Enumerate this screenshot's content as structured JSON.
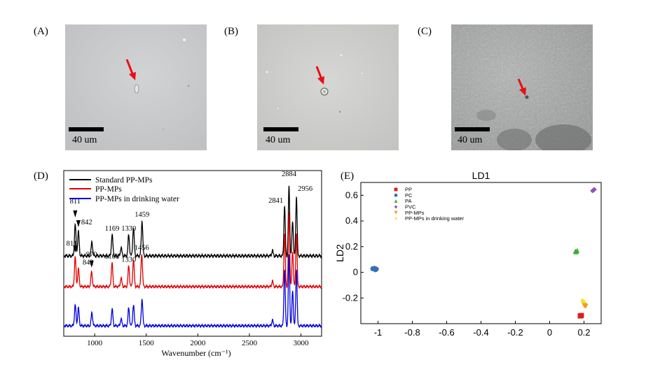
{
  "panels": {
    "A": {
      "label": "(A)",
      "scale_label": "40 um"
    },
    "B": {
      "label": "(B)",
      "scale_label": "40 um"
    },
    "C": {
      "label": "(C)",
      "scale_label": "40 um"
    },
    "D": {
      "label": "(D)"
    },
    "E": {
      "label": "(E)"
    }
  },
  "colors": {
    "standard": "#000000",
    "ppmps": "#e00000",
    "drinking": "#0000e0",
    "arrow": "#e81010"
  },
  "chart_data": [
    {
      "type": "line",
      "panel": "D",
      "xlabel": "Wavenumber (cm⁻¹)",
      "xlim": [
        700,
        3200
      ],
      "x_ticks": [
        1000,
        1500,
        2000,
        2500,
        3000
      ],
      "legend": [
        "Standard PP-MPs",
        "PP-MPs",
        "PP-MPs in drinking water"
      ],
      "series": [
        {
          "name": "Standard PP-MPs",
          "color": "#000000",
          "peaks": [
            [
              811,
              0.45
            ],
            [
              842,
              0.35
            ],
            [
              973,
              0.2
            ],
            [
              1169,
              0.3
            ],
            [
              1256,
              0.12
            ],
            [
              1330,
              0.3
            ],
            [
              1376,
              0.4
            ],
            [
              1459,
              0.5
            ],
            [
              2723,
              0.08
            ],
            [
              2841,
              0.72
            ],
            [
              2884,
              1.0
            ],
            [
              2919,
              0.5
            ],
            [
              2956,
              0.85
            ]
          ],
          "annotations": [
            {
              "x": 811,
              "text": "811",
              "marker": true
            },
            {
              "x": 842,
              "text": "842",
              "marker": true
            },
            {
              "x": 1169,
              "text": "1169"
            },
            {
              "x": 1330,
              "text": "1330"
            },
            {
              "x": 1459,
              "text": "1459"
            },
            {
              "x": 2841,
              "text": "2841"
            },
            {
              "x": 2884,
              "text": "2884"
            },
            {
              "x": 2956,
              "text": "2956"
            }
          ]
        },
        {
          "name": "PP-MPs",
          "color": "#e00000",
          "peaks": [
            [
              811,
              0.5
            ],
            [
              842,
              0.3
            ],
            [
              970,
              0.25
            ],
            [
              1168,
              0.4
            ],
            [
              1256,
              0.15
            ],
            [
              1330,
              0.35
            ],
            [
              1376,
              0.45
            ],
            [
              1456,
              0.55
            ],
            [
              2723,
              0.1
            ],
            [
              2841,
              0.9
            ],
            [
              2884,
              1.25
            ],
            [
              2919,
              0.6
            ],
            [
              2956,
              0.9
            ]
          ],
          "annotations": [
            {
              "x": 811,
              "text": "811",
              "marker": true
            },
            {
              "x": 842,
              "text": "842"
            },
            {
              "x": 970,
              "text": "970",
              "marker": true
            },
            {
              "x": 1168,
              "text": "1168"
            },
            {
              "x": 1330,
              "text": "1330"
            },
            {
              "x": 1456,
              "text": "1456"
            }
          ]
        },
        {
          "name": "PP-MPs in drinking water",
          "color": "#0000e0",
          "peaks": [
            [
              811,
              0.35
            ],
            [
              842,
              0.3
            ],
            [
              973,
              0.22
            ],
            [
              1169,
              0.28
            ],
            [
              1256,
              0.12
            ],
            [
              1330,
              0.3
            ],
            [
              1376,
              0.35
            ],
            [
              1459,
              0.45
            ],
            [
              2723,
              0.1
            ],
            [
              2841,
              0.95
            ],
            [
              2884,
              1.2
            ],
            [
              2919,
              0.6
            ],
            [
              2956,
              0.95
            ]
          ],
          "annotations": []
        }
      ]
    },
    {
      "type": "scatter",
      "panel": "E",
      "title": "LD1",
      "ylabel": "LD2",
      "xlim": [
        -1.1,
        0.3
      ],
      "ylim": [
        -0.4,
        0.7
      ],
      "x_ticks": [
        -1,
        -0.8,
        -0.6,
        -0.4,
        -0.2,
        0,
        0.2
      ],
      "y_ticks": [
        -0.2,
        0,
        0.2,
        0.4,
        0.6
      ],
      "legend_placement": "top-left",
      "series": [
        {
          "name": "PP",
          "color": "#e41a1c",
          "marker": "square",
          "points": [
            [
              0.182,
              -0.338
            ],
            [
              0.178,
              -0.34
            ],
            [
              0.185,
              -0.336
            ]
          ]
        },
        {
          "name": "PC",
          "color": "#3a6fb8",
          "marker": "circle",
          "points": [
            [
              -1.02,
              0.03
            ],
            [
              -1.01,
              0.025
            ],
            [
              -1.03,
              0.028
            ],
            [
              -1.015,
              0.02
            ]
          ]
        },
        {
          "name": "PA",
          "color": "#3cae3c",
          "marker": "triangle",
          "points": [
            [
              0.155,
              0.16
            ],
            [
              0.16,
              0.17
            ],
            [
              0.15,
              0.165
            ]
          ]
        },
        {
          "name": "PVC",
          "color": "#9650b4",
          "marker": "diamond",
          "points": [
            [
              0.255,
              0.64
            ],
            [
              0.26,
              0.645
            ],
            [
              0.25,
              0.635
            ]
          ]
        },
        {
          "name": "PP-MPs",
          "color": "#f59b1e",
          "marker": "triangle-down",
          "points": [
            [
              0.205,
              -0.26
            ],
            [
              0.21,
              -0.265
            ],
            [
              0.2,
              -0.255
            ]
          ]
        },
        {
          "name": "PP-MPs in drinking water",
          "color": "#f5e31e",
          "marker": "star",
          "points": [
            [
              0.195,
              -0.225
            ],
            [
              0.2,
              -0.23
            ],
            [
              0.19,
              -0.22
            ]
          ]
        }
      ]
    }
  ]
}
